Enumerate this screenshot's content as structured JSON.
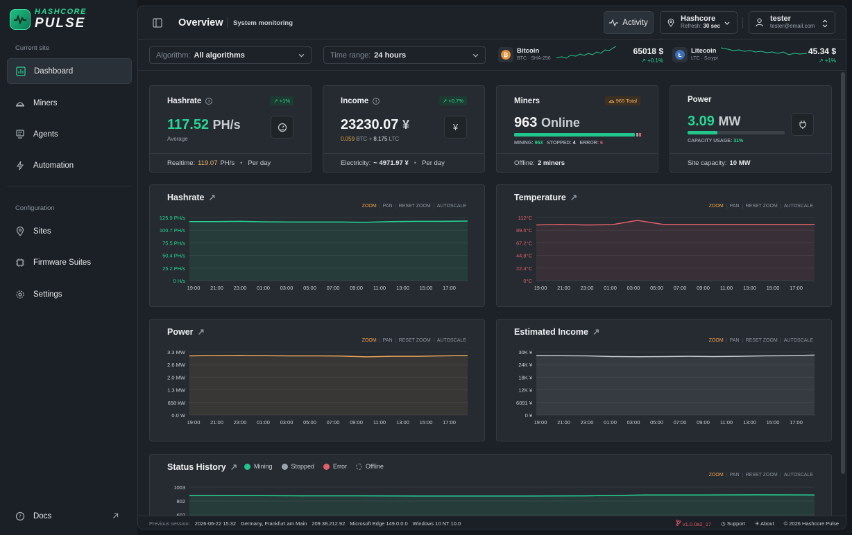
{
  "brand": {
    "line1": "HASHCORE",
    "line2": "PULSE"
  },
  "sidebar": {
    "section_current": "Current site",
    "section_config": "Configuration",
    "items": [
      {
        "label": "Dashboard",
        "icon": "dashboard-icon",
        "active": true
      },
      {
        "label": "Miners",
        "icon": "miner-icon"
      },
      {
        "label": "Agents",
        "icon": "agent-icon"
      },
      {
        "label": "Automation",
        "icon": "bolt-icon"
      },
      {
        "label": "Sites",
        "icon": "location-icon"
      },
      {
        "label": "Firmware Suites",
        "icon": "chip-icon"
      },
      {
        "label": "Settings",
        "icon": "gear-icon"
      }
    ],
    "docs": "Docs"
  },
  "header": {
    "title": "Overview",
    "subtitle": "System monitoring",
    "activity": "Activity",
    "site": {
      "name": "Hashcore",
      "refresh_label": "Refresh:",
      "refresh_value": "30 sec"
    },
    "user": {
      "name": "tester",
      "email": "tester@email.com"
    }
  },
  "filters": {
    "algorithm": {
      "label": "Algorithm:",
      "value": "All algorithms"
    },
    "time_range": {
      "label": "Time range:",
      "value": "24 hours"
    }
  },
  "tickers": [
    {
      "name": "Bitcoin",
      "sub": "BTC · SHA-256",
      "price": "65018 $",
      "change": "↗ +0.1%",
      "symbol": "₿",
      "color": "#e28f3c"
    },
    {
      "name": "Litecoin",
      "sub": "LTC · Scrypt",
      "price": "45.34 $",
      "change": "↗ +1%",
      "symbol": "Ł",
      "color": "#3d6fb8"
    }
  ],
  "kpis": {
    "hashrate": {
      "title": "Hashrate",
      "badge": "↗ +1%",
      "value": "117.52",
      "unit": "PH/s",
      "sub": "Average",
      "foot_label": "Realtime:",
      "foot_value": "119.07",
      "foot_unit": "PH/s",
      "foot_period": "Per day"
    },
    "income": {
      "title": "Income",
      "badge": "↗ +0.7%",
      "value": "23230.07",
      "unit": "¥",
      "btc": "0.059",
      "btc_unit": "BTC",
      "plus": "+",
      "ltc": "8.175",
      "ltc_unit": "LTC",
      "foot_label": "Electricity:",
      "foot_value": "~ 4971.97 ¥",
      "foot_period": "Per day"
    },
    "miners": {
      "title": "Miners",
      "badge": "965 Total",
      "value": "963",
      "unit": "Online",
      "mining_label": "MINING:",
      "mining": "953",
      "stopped_label": "STOPPED:",
      "stopped": "4",
      "error_label": "ERROR:",
      "error": "6",
      "foot_label": "Offline:",
      "foot_value": "2 miners"
    },
    "power": {
      "title": "Power",
      "value": "3.09",
      "unit": "MW",
      "usage_label": "CAPACITY USAGE:",
      "usage": "31%",
      "usage_fraction": 0.31,
      "foot_label": "Site capacity:",
      "foot_value": "10 MW"
    }
  },
  "chart_controls": [
    "ZOOM",
    "PAN",
    "RESET ZOOM",
    "AUTOSCALE"
  ],
  "chart_data": [
    {
      "type": "area",
      "title": "Hashrate",
      "color": "#26d795",
      "x": [
        "19:00",
        "21:00",
        "23:00",
        "01:00",
        "03:00",
        "05:00",
        "07:00",
        "09:00",
        "11:00",
        "13:00",
        "15:00",
        "17:00"
      ],
      "yticks": [
        "125.9 PH/s",
        "100.7 PH/s",
        "75.5 PH/s",
        "50.4 PH/s",
        "25.2 PH/s",
        "0 H/s"
      ],
      "ylim": [
        0,
        125.9
      ],
      "values": [
        118,
        118,
        118.5,
        117.5,
        117,
        117,
        117,
        116.5,
        118,
        118.5,
        118.5,
        119
      ]
    },
    {
      "type": "area",
      "title": "Temperature",
      "color": "#e0606a",
      "x": [
        "19:00",
        "21:00",
        "23:00",
        "01:00",
        "03:00",
        "05:00",
        "07:00",
        "09:00",
        "11:00",
        "13:00",
        "15:00",
        "17:00"
      ],
      "yticks": [
        "112°C",
        "89.6°C",
        "67.2°C",
        "44.8°C",
        "22.4°C",
        "0°C"
      ],
      "ylim": [
        0,
        112
      ],
      "values": [
        99,
        100,
        99,
        99.5,
        107,
        100,
        100,
        100,
        100,
        100,
        100,
        100
      ]
    },
    {
      "type": "area",
      "title": "Power",
      "color": "#e6a35a",
      "x": [
        "19:00",
        "21:00",
        "23:00",
        "01:00",
        "03:00",
        "05:00",
        "07:00",
        "09:00",
        "11:00",
        "13:00",
        "15:00",
        "17:00"
      ],
      "yticks": [
        "3.3 MW",
        "2.6 MW",
        "2.0 MW",
        "1.3 MW",
        "658 kW",
        "0.0 W"
      ],
      "ylim": [
        0,
        3.3
      ],
      "values": [
        3.1,
        3.12,
        3.13,
        3.11,
        3.1,
        3.1,
        3.09,
        3.05,
        3.08,
        3.08,
        3.1,
        3.12
      ]
    },
    {
      "type": "area",
      "title": "Estimated Income",
      "color": "#c5c9ce",
      "x": [
        "19:00",
        "21:00",
        "23:00",
        "01:00",
        "03:00",
        "05:00",
        "07:00",
        "09:00",
        "11:00",
        "13:00",
        "15:00",
        "17:00"
      ],
      "yticks": [
        "30K ¥",
        "24K ¥",
        "18K ¥",
        "12K ¥",
        "6091 ¥",
        "0 ¥"
      ],
      "ylim": [
        0,
        30455
      ],
      "values": [
        28800,
        28700,
        28600,
        28300,
        28200,
        28300,
        28400,
        28300,
        28400,
        28600,
        28700,
        29000
      ]
    },
    {
      "type": "area",
      "title": "Status History",
      "color": "#26d795",
      "legend": [
        {
          "name": "Mining",
          "color": "#22c58b"
        },
        {
          "name": "Stopped",
          "color": "#9aa2ab"
        },
        {
          "name": "Error",
          "color": "#e0606a"
        },
        {
          "name": "Offline",
          "color": "#9aa2ab"
        }
      ],
      "yticks": [
        "1003",
        "802",
        "602"
      ],
      "ylim": [
        602,
        1003
      ],
      "values": [
        955,
        954,
        953,
        953,
        952,
        952,
        952,
        953,
        958,
        958,
        959,
        958
      ]
    }
  ],
  "footer": {
    "prev_label": "Previous session:",
    "datetime": "2026-06-22 15:32",
    "location": "Germany, Frankfurt am Main",
    "ip": "209.38.212.92",
    "browser": "Microsoft Edge 149.0.0.0",
    "os": "Windows 10 NT 10.0",
    "version": "v1.0.0a2_17",
    "support": "Support",
    "about": "About",
    "copyright": "© 2026 Hashcore Pulse"
  }
}
